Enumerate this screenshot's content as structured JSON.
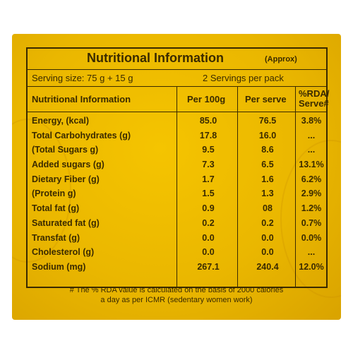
{
  "title": "Nutritional Information",
  "approx": "(Approx)",
  "serving_size": "Serving size: 75 g + 15 g",
  "servings_per_pack": "2 Servings per pack",
  "headers": {
    "col1": "Nutritional Information",
    "col2": "Per 100g",
    "col3": "Per serve",
    "col4_line1": "%RDA/",
    "col4_line2": "Serve#"
  },
  "rows": [
    {
      "name": "Energy, (kcal)",
      "per100": "85.0",
      "perserve": "76.5",
      "rda": "3.8%"
    },
    {
      "name": "Total Carbohydrates (g)",
      "per100": "17.8",
      "perserve": "16.0",
      "rda": "..."
    },
    {
      "name": "(Total Sugars g)",
      "per100": "9.5",
      "perserve": "8.6",
      "rda": "..."
    },
    {
      "name": "Added sugars (g)",
      "per100": "7.3",
      "perserve": "6.5",
      "rda": "13.1%"
    },
    {
      "name": "Dietary Fiber (g)",
      "per100": "1.7",
      "perserve": "1.6",
      "rda": "6.2%"
    },
    {
      "name": "(Protein g)",
      "per100": "1.5",
      "perserve": "1.3",
      "rda": "2.9%"
    },
    {
      "name": "Total fat (g)",
      "per100": "0.9",
      "perserve": "08",
      "rda": "1.2%"
    },
    {
      "name": "Saturated fat (g)",
      "per100": "0.2",
      "perserve": "0.2",
      "rda": "0.7%"
    },
    {
      "name": "Transfat (g)",
      "per100": "0.0",
      "perserve": "0.0",
      "rda": "0.0%"
    },
    {
      "name": "Cholesterol (g)",
      "per100": "0.0",
      "perserve": "0.0",
      "rda": "..."
    },
    {
      "name": "Sodium (mg)",
      "per100": "267.1",
      "perserve": "240.4",
      "rda": "12.0%"
    }
  ],
  "footnote_line1": "# The % RDA value is calculated on the basis of 2000 calories",
  "footnote_line2": "a day as per ICMR (sedentary women work)",
  "colors": {
    "panel": "#eab700",
    "ink": "#3a2a00"
  }
}
